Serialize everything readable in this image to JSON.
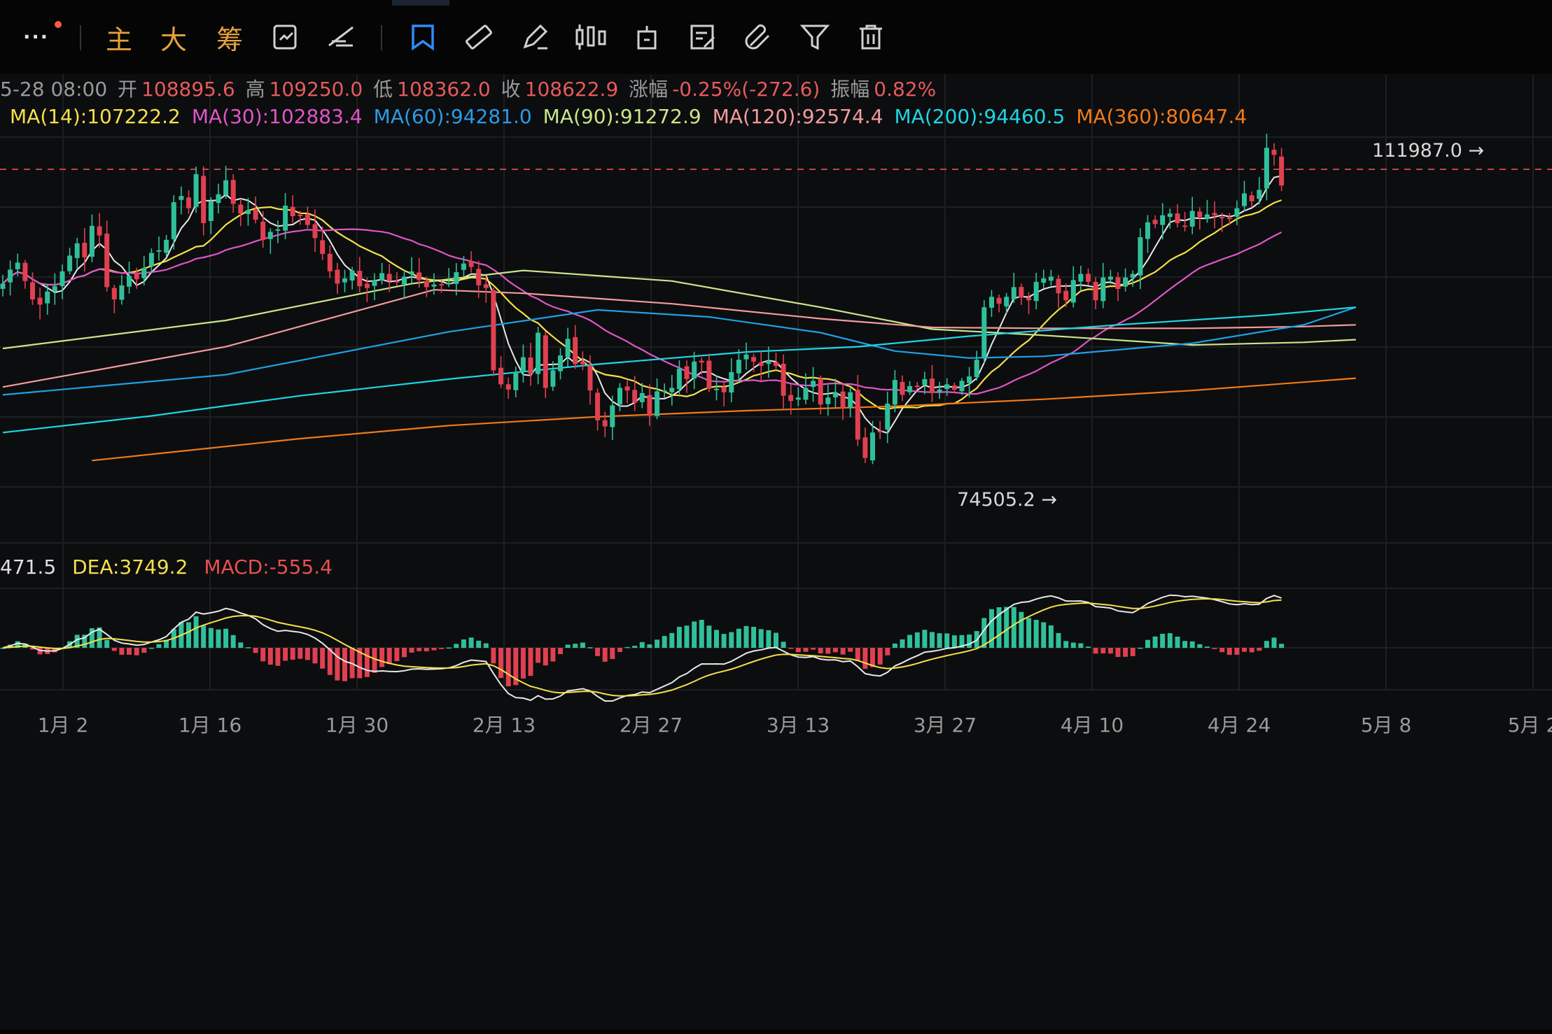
{
  "toolbar": {
    "more_label": "···",
    "main_label": "主",
    "big_label": "大",
    "chip_label": "筹"
  },
  "ohlc": {
    "date": "5-28 08:00",
    "open_label": "开",
    "open": "108895.6",
    "high_label": "高",
    "high": "109250.0",
    "low_label": "低",
    "low": "108362.0",
    "close_label": "收",
    "close": "108622.9",
    "change_label": "涨幅",
    "change": "-0.25%(-272.6)",
    "amp_label": "振幅",
    "amp": "0.82%"
  },
  "ma_legend": [
    {
      "text": "MA(14):107222.2",
      "color": "#f5e04a"
    },
    {
      "text": "MA(30):102883.4",
      "color": "#e055c8"
    },
    {
      "text": "MA(60):94281.0",
      "color": "#2b9be6"
    },
    {
      "text": "MA(90):91272.9",
      "color": "#c8e68a"
    },
    {
      "text": "MA(120):92574.4",
      "color": "#f49b9b"
    },
    {
      "text": "MA(200):94460.5",
      "color": "#1ed6e6"
    },
    {
      "text": "MA(360):80647.4",
      "color": "#f07a18"
    }
  ],
  "macd_legend": {
    "dif": "471.5",
    "dif_color": "#ffffff",
    "dea": "DEA:3749.2",
    "dea_color": "#f5e04a",
    "macd": "MACD:-555.4",
    "macd_color": "#e85050"
  },
  "colors": {
    "up": "#2fc09a",
    "down": "#e04050",
    "grid": "#1d1f22",
    "text": "#9a9a9a"
  },
  "chart_data": {
    "type": "candlestick",
    "x_tick_labels": [
      "1月 2",
      "1月 16",
      "1月 30",
      "2月 13",
      "2月 27",
      "3月 13",
      "3月 27",
      "4月 10",
      "4月 24",
      "5月 8",
      "5月 2"
    ],
    "annotations": {
      "high_mark": "111987.0",
      "low_mark": "74505.2"
    },
    "reference_line": 109250.0,
    "ylim": [
      69000,
      115000
    ],
    "closes": [
      96200,
      97800,
      98600,
      96500,
      94400,
      93800,
      95300,
      95900,
      97600,
      99400,
      100800,
      99200,
      102800,
      101700,
      95800,
      94400,
      96000,
      97100,
      96700,
      98000,
      99700,
      100000,
      101200,
      105500,
      106200,
      104800,
      108700,
      103100,
      105600,
      106400,
      108000,
      105300,
      104200,
      104600,
      103500,
      101200,
      102100,
      102400,
      105100,
      103900,
      103900,
      102900,
      101400,
      99600,
      97600,
      96200,
      96800,
      97700,
      95900,
      95700,
      96600,
      97400,
      96500,
      96400,
      97000,
      97600,
      96600,
      95800,
      96100,
      96100,
      96300,
      97500,
      98500,
      98100,
      96000,
      95700,
      86300,
      84700,
      84100,
      86100,
      87800,
      85900,
      90600,
      84300,
      86300,
      88000,
      89900,
      87000,
      87000,
      84000,
      80600,
      79900,
      82300,
      84300,
      84000,
      82600,
      83700,
      81100,
      83900,
      84000,
      84300,
      86500,
      85300,
      87300,
      87200,
      84200,
      84200,
      83800,
      86100,
      87500,
      88100,
      87300,
      86800,
      87400,
      86800,
      83400,
      82800,
      83200,
      84300,
      85100,
      82400,
      83200,
      83800,
      82000,
      83800,
      78400,
      76300,
      79200,
      79300,
      82500,
      85200,
      83500,
      84500,
      84500,
      85300,
      83700,
      84100,
      84700,
      84100,
      85100,
      85600,
      87500,
      93500,
      94700,
      93900,
      94700,
      95800,
      94600,
      94300,
      96400,
      96800,
      97000,
      95100,
      94300,
      96600,
      97300,
      96400,
      94300,
      96900,
      97000,
      95600,
      96900,
      97300,
      101500,
      103200,
      103000,
      104000,
      104200,
      103100,
      102700,
      104500,
      103800,
      104100,
      104000,
      103700,
      103600,
      104800,
      106500,
      105600,
      106900,
      111700,
      110900,
      107400
    ]
  }
}
